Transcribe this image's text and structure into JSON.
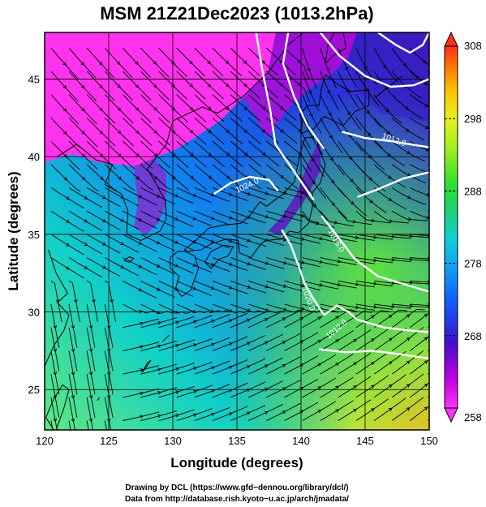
{
  "title": "MSM 21Z21Dec2023 (1013.2hPa)",
  "x_axis": {
    "label": "Longitude (degrees)",
    "range": [
      120,
      150
    ],
    "ticks": [
      120,
      125,
      130,
      135,
      140,
      145,
      150
    ],
    "tick_labels": [
      "120",
      "125",
      "130",
      "135",
      "140",
      "145",
      "150"
    ]
  },
  "y_axis": {
    "label": "Latitude  (degrees)",
    "range": [
      22.4,
      48
    ],
    "ticks": [
      25,
      30,
      35,
      40,
      45
    ],
    "tick_labels": [
      "25",
      "30",
      "35",
      "40",
      "45"
    ]
  },
  "colorbar": {
    "min": 258,
    "max": 308,
    "tick_labels": [
      "308",
      "298",
      "288",
      "278",
      "268",
      "258"
    ],
    "tick_values": [
      308,
      298,
      288,
      278,
      268,
      258
    ],
    "colors": [
      "#ff33ff",
      "#b000d0",
      "#3010d0",
      "#1060ff",
      "#10c8e0",
      "#20d070",
      "#40e020",
      "#c8f020",
      "#ffd000",
      "#ff8000",
      "#ff3020"
    ]
  },
  "contour_labels": [
    "1024.0",
    "1016.0",
    "1012.0",
    "1020.0",
    "1012.0"
  ],
  "credits": {
    "line1": "Drawing by DCL (https://www.gfd−dennou.org/library/dcl/)",
    "line2": "Data from http://database.rish.kyoto−u.ac.jp/arch/jmadata/"
  },
  "chart_data": {
    "type": "heatmap",
    "title": "MSM 21Z21Dec2023 (1013.2hPa)",
    "xlabel": "Longitude (degrees)",
    "ylabel": "Latitude  (degrees)",
    "xlim": [
      120,
      150
    ],
    "ylim": [
      22.4,
      48
    ],
    "color_scale": [
      258,
      308
    ],
    "overlays": [
      "temperature shading",
      "pressure contours (white)",
      "wind streamlines (black)",
      "coastlines",
      "grid"
    ],
    "contour_values": [
      1012.0,
      1016.0,
      1020.0,
      1024.0
    ]
  }
}
